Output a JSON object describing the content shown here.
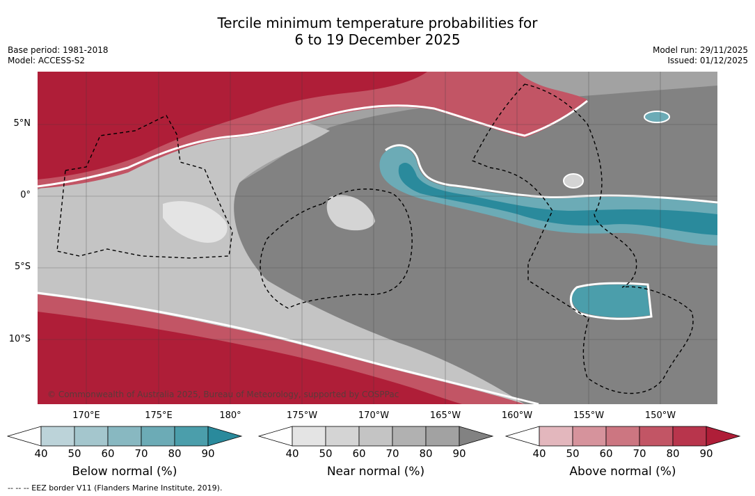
{
  "title": {
    "line1": "Tercile minimum temperature probabilities for",
    "line2": "6 to 19 December 2025"
  },
  "meta": {
    "base_period": "Base period: 1981-2018",
    "model": "Model: ACCESS-S2",
    "model_run": "Model run: 29/11/2025",
    "issued": "Issued: 01/12/2025"
  },
  "map": {
    "lat_labels": [
      "5°N",
      "0°",
      "5°S",
      "10°S"
    ],
    "lon_labels": [
      "170°E",
      "175°E",
      "180°",
      "175°W",
      "170°W",
      "165°W",
      "160°W",
      "155°W",
      "150°W"
    ],
    "copyright": "© Commonwealth of Australia 2025, Bureau of Meteorology, supported by COSPPac"
  },
  "colorbars": [
    {
      "title": "Below normal (%)",
      "ticks": [
        "40",
        "50",
        "60",
        "70",
        "80",
        "90"
      ],
      "colors": [
        "#ffffff",
        "#bcd3d9",
        "#a4c6cd",
        "#88b8c1",
        "#6cabb6",
        "#4b9eab",
        "#2a8a9c"
      ]
    },
    {
      "title": "Near normal (%)",
      "ticks": [
        "40",
        "50",
        "60",
        "70",
        "80",
        "90"
      ],
      "colors": [
        "#ffffff",
        "#e4e4e4",
        "#d4d4d4",
        "#c4c4c4",
        "#b1b1b1",
        "#a2a2a2",
        "#828282"
      ]
    },
    {
      "title": "Above normal (%)",
      "ticks": [
        "40",
        "50",
        "60",
        "70",
        "80",
        "90"
      ],
      "colors": [
        "#ffffff",
        "#e3b7bd",
        "#d6939c",
        "#cc7681",
        "#c25565",
        "#b8354c",
        "#af1e38"
      ]
    }
  ],
  "footnote": "--  --  -- EEZ border V11 (Flanders Marine Institute, 2019)."
}
